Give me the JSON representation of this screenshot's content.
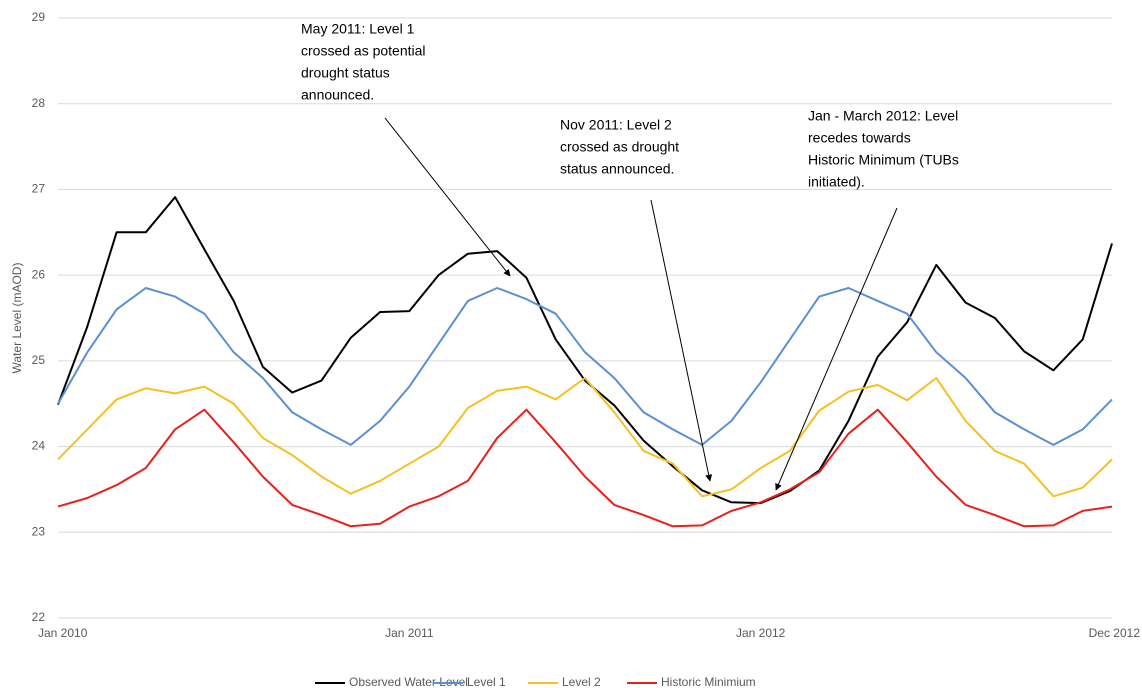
{
  "chart_data": {
    "type": "line",
    "y_label": "Water Level (mAOD)",
    "categories": [
      "Jan 2010",
      null,
      null,
      null,
      null,
      null,
      null,
      null,
      null,
      null,
      null,
      null,
      "Jan 2011",
      null,
      null,
      null,
      null,
      null,
      null,
      null,
      null,
      null,
      null,
      null,
      "Jan 2012",
      null,
      null,
      null,
      null,
      null,
      null,
      null,
      null,
      null,
      null,
      null,
      "Dec 2012"
    ],
    "ylim": [
      22,
      29
    ],
    "yticks": [
      22,
      23,
      24,
      25,
      26,
      27,
      28,
      29
    ],
    "grid": true,
    "series": [
      {
        "name": "Observed Water Level",
        "color": "#000000",
        "values": [
          24.49,
          25.4,
          26.5,
          26.5,
          26.91,
          26.3,
          25.7,
          24.93,
          24.63,
          24.77,
          25.27,
          25.57,
          25.58,
          26.0,
          26.25,
          26.28,
          25.97,
          25.25,
          24.77,
          24.48,
          24.07,
          23.77,
          23.49,
          23.35,
          23.34,
          23.48,
          23.72,
          24.3,
          25.05,
          25.45,
          26.12,
          25.68,
          25.5,
          25.11,
          24.89,
          25.25,
          26.37
        ]
      },
      {
        "name": "Level 1",
        "color": "#5b8fd1",
        "values": [
          24.5,
          25.1,
          25.6,
          25.85,
          25.75,
          25.55,
          25.1,
          24.8,
          24.4,
          24.2,
          24.02,
          24.3,
          24.7,
          25.2,
          25.7,
          25.85,
          25.72,
          25.55,
          25.1,
          24.8,
          24.4,
          24.2,
          24.02,
          24.3,
          24.75,
          25.25,
          25.75,
          25.85,
          25.7,
          25.55,
          25.1,
          24.8,
          24.4,
          24.2,
          24.02,
          24.2,
          24.55
        ]
      },
      {
        "name": "Level 2",
        "color": "#f5c020",
        "values": [
          23.85,
          24.2,
          24.55,
          24.68,
          24.62,
          24.7,
          24.5,
          24.1,
          23.9,
          23.65,
          23.45,
          23.6,
          23.8,
          24.0,
          24.45,
          24.65,
          24.7,
          24.55,
          24.8,
          24.4,
          23.95,
          23.8,
          23.42,
          23.5,
          23.75,
          23.95,
          24.42,
          24.64,
          24.72,
          24.54,
          24.8,
          24.3,
          23.95,
          23.8,
          23.42,
          23.52,
          23.85
        ]
      },
      {
        "name": "Historic Minimium",
        "color": "#e8201c",
        "values": [
          23.3,
          23.4,
          23.55,
          23.75,
          24.2,
          24.43,
          24.05,
          23.65,
          23.32,
          23.2,
          23.07,
          23.1,
          23.3,
          23.42,
          23.6,
          24.1,
          24.43,
          24.05,
          23.65,
          23.32,
          23.2,
          23.07,
          23.08,
          23.25,
          23.35,
          23.5,
          23.7,
          24.15,
          24.43,
          24.05,
          23.65,
          23.32,
          23.2,
          23.07,
          23.08,
          23.25,
          23.3
        ]
      }
    ],
    "annotations": [
      {
        "lines": [
          "May 2011: Level 1",
          "crossed as potential",
          "drought status",
          "announced."
        ]
      },
      {
        "lines": [
          "Nov 2011: Level 2",
          "crossed as drought",
          "status announced."
        ]
      },
      {
        "lines": [
          "Jan - March 2012: Level",
          "recedes towards",
          "Historic Minimum (TUBs",
          "initiated)."
        ]
      }
    ]
  }
}
